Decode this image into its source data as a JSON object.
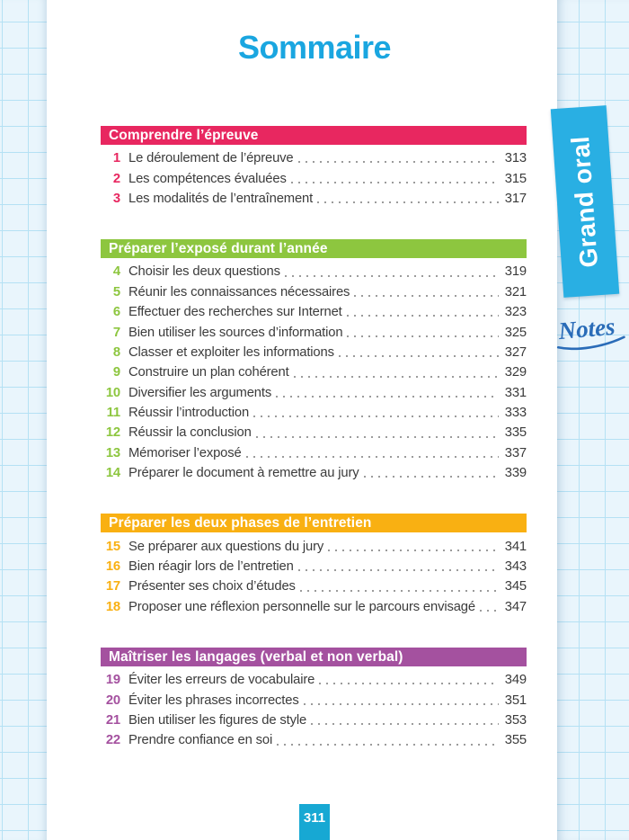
{
  "page": {
    "title": "Sommaire",
    "side_tab": "Grand oral",
    "notes_label": "Notes",
    "page_number": "311"
  },
  "colors": {
    "title_blue": "#1AA6E0",
    "tab_blue": "#29AFE3",
    "page_box_blue": "#17A8D3",
    "notes_blue": "#2A6CB8",
    "text": "#3B3B3B"
  },
  "sections": [
    {
      "title": "Comprendre l’épreuve",
      "color": "#E82760",
      "items": [
        {
          "num": "1",
          "label": "Le déroulement de l’épreuve",
          "page": "313"
        },
        {
          "num": "2",
          "label": "Les compétences évaluées",
          "page": "315"
        },
        {
          "num": "3",
          "label": "Les modalités de l’entraînement",
          "page": "317"
        }
      ]
    },
    {
      "title": "Préparer l’exposé durant l’année",
      "color": "#8DC63F",
      "items": [
        {
          "num": "4",
          "label": "Choisir les deux questions",
          "page": "319"
        },
        {
          "num": "5",
          "label": "Réunir les connaissances nécessaires",
          "page": "321"
        },
        {
          "num": "6",
          "label": "Effectuer des recherches sur Internet",
          "page": "323"
        },
        {
          "num": "7",
          "label": "Bien utiliser les sources d’information",
          "page": "325"
        },
        {
          "num": "8",
          "label": "Classer et exploiter les informations",
          "page": "327"
        },
        {
          "num": "9",
          "label": "Construire un plan cohérent",
          "page": "329"
        },
        {
          "num": "10",
          "label": "Diversifier les arguments",
          "page": "331"
        },
        {
          "num": "11",
          "label": "Réussir l’introduction",
          "page": "333"
        },
        {
          "num": "12",
          "label": "Réussir la conclusion",
          "page": "335"
        },
        {
          "num": "13",
          "label": "Mémoriser l’exposé",
          "page": "337"
        },
        {
          "num": "14",
          "label": "Préparer le document à remettre au jury",
          "page": "339"
        }
      ]
    },
    {
      "title": "Préparer les deux phases de l’entretien",
      "color": "#F9B012",
      "items": [
        {
          "num": "15",
          "label": "Se préparer aux questions du jury",
          "page": "341"
        },
        {
          "num": "16",
          "label": "Bien réagir lors de l’entretien",
          "page": "343"
        },
        {
          "num": "17",
          "label": "Présenter ses choix d’études",
          "page": "345"
        },
        {
          "num": "18",
          "label": "Proposer une réflexion personnelle sur le parcours envisagé",
          "page": "347"
        }
      ]
    },
    {
      "title": "Maîtriser les langages (verbal et non verbal)",
      "color": "#A4519F",
      "items": [
        {
          "num": "19",
          "label": "Éviter les erreurs de vocabulaire",
          "page": "349"
        },
        {
          "num": "20",
          "label": "Éviter les phrases incorrectes",
          "page": "351"
        },
        {
          "num": "21",
          "label": "Bien utiliser les figures de style",
          "page": "353"
        },
        {
          "num": "22",
          "label": "Prendre confiance en soi",
          "page": "355"
        }
      ]
    }
  ]
}
